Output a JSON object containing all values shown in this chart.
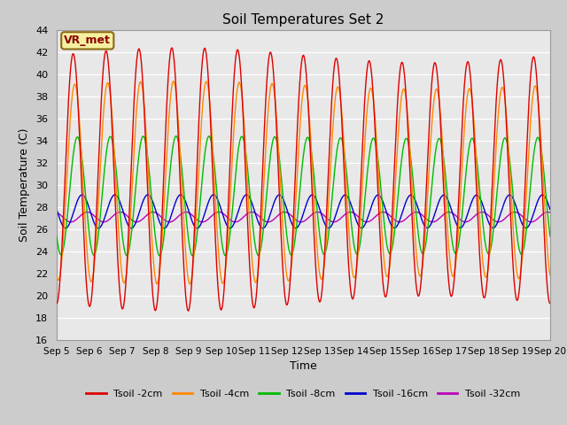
{
  "title": "Soil Temperatures Set 2",
  "xlabel": "Time",
  "ylabel": "Soil Temperature (C)",
  "ylim": [
    16,
    44
  ],
  "xlim": [
    0,
    15
  ],
  "yticks": [
    16,
    18,
    20,
    22,
    24,
    26,
    28,
    30,
    32,
    34,
    36,
    38,
    40,
    42,
    44
  ],
  "xtick_labels": [
    "Sep 5",
    "Sep 6",
    "Sep 7",
    "Sep 8",
    "Sep 9",
    "Sep 10",
    "Sep 11",
    "Sep 12",
    "Sep 13",
    "Sep 14",
    "Sep 15",
    "Sep 16",
    "Sep 17",
    "Sep 18",
    "Sep 19",
    "Sep 20"
  ],
  "xtick_positions": [
    0,
    1,
    2,
    3,
    4,
    5,
    6,
    7,
    8,
    9,
    10,
    11,
    12,
    13,
    14,
    15
  ],
  "annotation": "VR_met",
  "fig_bg_color": "#cccccc",
  "plot_bg_color": "#e8e8e8",
  "grid_color": "#ffffff",
  "series_colors": [
    "#dd0000",
    "#ff8800",
    "#00bb00",
    "#0000cc",
    "#bb00bb"
  ],
  "series_labels": [
    "Tsoil -2cm",
    "Tsoil -4cm",
    "Tsoil -8cm",
    "Tsoil -16cm",
    "Tsoil -32cm"
  ],
  "s0": {
    "mean": 30.5,
    "amp": 11.2,
    "phase": 0.25,
    "amp_mod": 0.06
  },
  "s1": {
    "mean": 30.2,
    "amp": 8.8,
    "phase": 0.3,
    "amp_mod": 0.04
  },
  "s2": {
    "mean": 29.0,
    "amp": 5.3,
    "phase": 0.38,
    "amp_mod": 0.02
  },
  "s3": {
    "mean": 27.6,
    "amp": 1.5,
    "phase": 0.52,
    "amp_mod": 0.01
  },
  "s4": {
    "mean": 27.1,
    "amp": 0.45,
    "phase": 0.68,
    "amp_mod": 0.005
  }
}
